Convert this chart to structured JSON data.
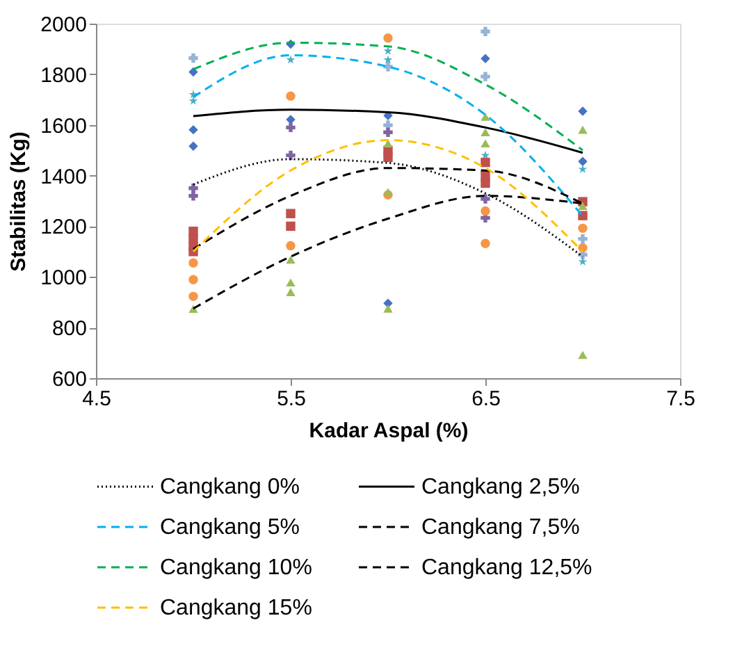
{
  "chart_data": {
    "type": "scatter",
    "xlabel": "Kadar Aspal (%)",
    "ylabel": "Stabilitas (Kg)",
    "xlim": [
      4.5,
      7.5
    ],
    "xticks": [
      4.5,
      5.5,
      6.5,
      7.5
    ],
    "ylim": [
      600,
      2000
    ],
    "yticks": [
      600,
      800,
      1000,
      1200,
      1400,
      1600,
      1800,
      2000
    ],
    "grid": false,
    "legend": "bottom",
    "series": [
      {
        "marker": "diamond",
        "color": "#4472c4",
        "x": [
          5,
          5,
          5,
          5.5,
          5.5,
          6,
          6,
          6.5,
          7,
          7
        ],
        "values": [
          1809,
          1581,
          1516,
          1919,
          1621,
          1637,
          896,
          1862,
          1654,
          1456
        ]
      },
      {
        "marker": "cross",
        "color": "#95b3d7",
        "x": [
          5,
          6,
          6,
          6.5,
          6.5,
          7,
          7
        ],
        "values": [
          1864,
          1830,
          1599,
          1969,
          1791,
          1150,
          1088
        ]
      },
      {
        "marker": "star",
        "color": "#4bacc6",
        "x": [
          5,
          5,
          5.5,
          6,
          6,
          6.5,
          7,
          7
        ],
        "values": [
          1720,
          1695,
          1857,
          1892,
          1857,
          1480,
          1425,
          1060
        ]
      },
      {
        "marker": "cross",
        "color": "#8064a2",
        "x": [
          5,
          5,
          5.5,
          5.5,
          6,
          6.5,
          6.5
        ],
        "values": [
          1350,
          1320,
          1590,
          1480,
          1571,
          1308,
          1233
        ]
      },
      {
        "marker": "square",
        "color": "#c0504d",
        "x": [
          5,
          5,
          5,
          5,
          5.5,
          5.5,
          6,
          6,
          6.5,
          6.5,
          6.5,
          7,
          7
        ],
        "values": [
          1180,
          1150,
          1120,
          1100,
          1250,
          1200,
          1500,
          1472,
          1452,
          1400,
          1370,
          1297,
          1242
        ]
      },
      {
        "marker": "circle",
        "color": "#f79646",
        "x": [
          5,
          5,
          5,
          5.5,
          5.5,
          6,
          6,
          6.5,
          6.5,
          7,
          7
        ],
        "values": [
          1055,
          989,
          923,
          1714,
          1123,
          1943,
          1324,
          1260,
          1132,
          1192,
          1115
        ]
      },
      {
        "marker": "triangle",
        "color": "#9bbb59",
        "x": [
          5,
          5.5,
          5.5,
          5.5,
          6,
          6,
          6,
          6.5,
          6.5,
          6.5,
          7,
          7,
          7
        ],
        "values": [
          874,
          1068,
          978,
          940,
          1527,
          1335,
          875,
          1632,
          1571,
          1527,
          1581,
          1280,
          692
        ]
      },
      {
        "type": "line",
        "name": "Cangkang 0%",
        "color": "#000000",
        "line_style": "dotted",
        "x": [
          5,
          5.5,
          6,
          6.5,
          7
        ],
        "values": [
          1365,
          1465,
          1450,
          1330,
          1080
        ]
      },
      {
        "type": "line",
        "name": "Cangkang 2,5%",
        "color": "#000000",
        "line_style": "solid",
        "x": [
          5,
          5.5,
          6,
          6.5,
          7
        ],
        "values": [
          1635,
          1660,
          1650,
          1590,
          1490
        ]
      },
      {
        "type": "line",
        "name": "Cangkang 5%",
        "color": "#00b0f0",
        "line_style": "dashed",
        "x": [
          5,
          5.5,
          6,
          6.5,
          7
        ],
        "values": [
          1710,
          1875,
          1830,
          1640,
          1240
        ]
      },
      {
        "type": "line",
        "name": "Cangkang 7,5%",
        "color": "#000000",
        "line_style": "dashed",
        "x": [
          5,
          5.5,
          6,
          6.5,
          7
        ],
        "values": [
          1110,
          1320,
          1430,
          1420,
          1290
        ]
      },
      {
        "type": "line",
        "name": "Cangkang 10%",
        "color": "#00b050",
        "line_style": "dashed",
        "x": [
          5,
          5.5,
          6,
          6.5,
          7
        ],
        "values": [
          1820,
          1925,
          1910,
          1760,
          1500
        ]
      },
      {
        "type": "line",
        "name": "Cangkang 12,5%",
        "color": "#000000",
        "line_style": "dashed",
        "x": [
          5,
          5.5,
          6,
          6.5,
          7
        ],
        "values": [
          875,
          1080,
          1230,
          1320,
          1290
        ]
      },
      {
        "type": "line",
        "name": "Cangkang 15%",
        "color": "#ffc000",
        "line_style": "dashed",
        "x": [
          5,
          5.5,
          6,
          6.5,
          7
        ],
        "values": [
          1100,
          1420,
          1540,
          1430,
          1100
        ]
      }
    ]
  }
}
